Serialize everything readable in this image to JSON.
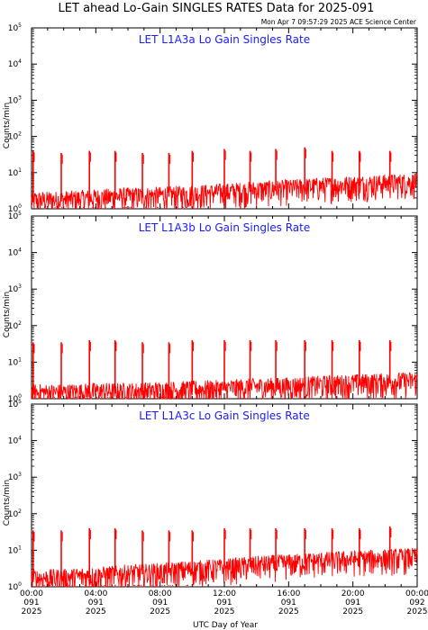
{
  "page": {
    "title": "LET ahead Lo-Gain SINGLES RATES Data for 2025-091",
    "timestamp": "Mon Apr  7 09:57:29 2025 ACE Science Center"
  },
  "colors": {
    "trace": "#ff0000",
    "panel_title": "#1a1aff",
    "axis": "#000000"
  },
  "chart_data": [
    {
      "type": "line",
      "title": "LET L1A3a Lo Gain Singles Rate",
      "ylabel": "Counts/min",
      "yscale": "log",
      "ylim": [
        1,
        100000
      ],
      "yticks": [
        {
          "base": "10",
          "exp": "0"
        },
        {
          "base": "10",
          "exp": "1"
        },
        {
          "base": "10",
          "exp": "2"
        },
        {
          "base": "10",
          "exp": "3"
        },
        {
          "base": "10",
          "exp": "4"
        },
        {
          "base": "10",
          "exp": "5"
        }
      ],
      "xlim": [
        "2025-091 00:00",
        "2025-092 00:00"
      ],
      "series": [
        {
          "baseline": [
            [
              0,
              1.5
            ],
            [
              2,
              1.6
            ],
            [
              4,
              1.8
            ],
            [
              6,
              2.0
            ],
            [
              8,
              2.1
            ],
            [
              10,
              2.3
            ],
            [
              12,
              2.6
            ],
            [
              14,
              3.0
            ],
            [
              16,
              3.3
            ],
            [
              18,
              3.8
            ],
            [
              20,
              4.2
            ],
            [
              22,
              4.6
            ],
            [
              24,
              5.0
            ]
          ],
          "spikes": [
            [
              0.1,
              40
            ],
            [
              1.85,
              35
            ],
            [
              3.6,
              40
            ],
            [
              5.2,
              40
            ],
            [
              6.9,
              35
            ],
            [
              8.55,
              35
            ],
            [
              10.0,
              40
            ],
            [
              12.0,
              45
            ],
            [
              13.6,
              40
            ],
            [
              15.2,
              45
            ],
            [
              17.0,
              50
            ],
            [
              18.7,
              40
            ],
            [
              20.4,
              40
            ],
            [
              22.3,
              40
            ]
          ]
        }
      ]
    },
    {
      "type": "line",
      "title": "LET L1A3b Lo Gain Singles Rate",
      "ylabel": "Counts/min",
      "yscale": "log",
      "ylim": [
        1,
        100000
      ],
      "yticks": [
        {
          "base": "10",
          "exp": "0"
        },
        {
          "base": "10",
          "exp": "1"
        },
        {
          "base": "10",
          "exp": "2"
        },
        {
          "base": "10",
          "exp": "3"
        },
        {
          "base": "10",
          "exp": "4"
        },
        {
          "base": "10",
          "exp": "5"
        }
      ],
      "xlim": [
        "2025-091 00:00",
        "2025-092 00:00"
      ],
      "series": [
        {
          "baseline": [
            [
              0,
              1.3
            ],
            [
              2,
              1.3
            ],
            [
              4,
              1.4
            ],
            [
              6,
              1.4
            ],
            [
              8,
              1.5
            ],
            [
              10,
              1.6
            ],
            [
              12,
              1.7
            ],
            [
              14,
              1.9
            ],
            [
              16,
              2.0
            ],
            [
              18,
              2.2
            ],
            [
              20,
              2.4
            ],
            [
              22,
              2.6
            ],
            [
              24,
              2.8
            ]
          ],
          "spikes": [
            [
              0.1,
              35
            ],
            [
              1.85,
              35
            ],
            [
              3.6,
              40
            ],
            [
              5.2,
              40
            ],
            [
              6.9,
              35
            ],
            [
              8.55,
              35
            ],
            [
              10.0,
              40
            ],
            [
              12.0,
              40
            ],
            [
              13.6,
              40
            ],
            [
              15.2,
              40
            ],
            [
              17.0,
              40
            ],
            [
              18.7,
              40
            ],
            [
              20.4,
              40
            ],
            [
              22.3,
              40
            ]
          ]
        }
      ]
    },
    {
      "type": "line",
      "title": "LET L1A3c Lo Gain Singles Rate",
      "ylabel": "Counts/min",
      "yscale": "log",
      "ylim": [
        1,
        100000
      ],
      "yticks": [
        {
          "base": "10",
          "exp": "0"
        },
        {
          "base": "10",
          "exp": "1"
        },
        {
          "base": "10",
          "exp": "2"
        },
        {
          "base": "10",
          "exp": "3"
        },
        {
          "base": "10",
          "exp": "4"
        },
        {
          "base": "10",
          "exp": "5"
        }
      ],
      "xlim": [
        "2025-091 00:00",
        "2025-092 00:00"
      ],
      "xlabel": "UTC Day of Year",
      "xticks": [
        {
          "time": "00:00",
          "doy": "091",
          "year": "2025"
        },
        {
          "time": "04:00",
          "doy": "091",
          "year": "2025"
        },
        {
          "time": "08:00",
          "doy": "091",
          "year": "2025"
        },
        {
          "time": "12:00",
          "doy": "091",
          "year": "2025"
        },
        {
          "time": "16:00",
          "doy": "091",
          "year": "2025"
        },
        {
          "time": "20:00",
          "doy": "091",
          "year": "2025"
        },
        {
          "time": "00:00",
          "doy": "092",
          "year": "2025"
        }
      ],
      "series": [
        {
          "baseline": [
            [
              0,
              1.5
            ],
            [
              2,
              1.6
            ],
            [
              4,
              1.8
            ],
            [
              6,
              2.1
            ],
            [
              8,
              2.3
            ],
            [
              10,
              2.7
            ],
            [
              12,
              3.0
            ],
            [
              14,
              3.6
            ],
            [
              16,
              4.0
            ],
            [
              18,
              4.6
            ],
            [
              20,
              5.0
            ],
            [
              22,
              5.5
            ],
            [
              24,
              6.0
            ]
          ],
          "spikes": [
            [
              0.1,
              35
            ],
            [
              1.85,
              35
            ],
            [
              3.6,
              40
            ],
            [
              5.2,
              40
            ],
            [
              6.9,
              35
            ],
            [
              8.55,
              35
            ],
            [
              10.0,
              35
            ],
            [
              12.0,
              40
            ],
            [
              13.6,
              40
            ],
            [
              15.2,
              40
            ],
            [
              17.0,
              40
            ],
            [
              18.7,
              40
            ],
            [
              20.4,
              40
            ],
            [
              22.3,
              45
            ]
          ]
        }
      ]
    }
  ]
}
